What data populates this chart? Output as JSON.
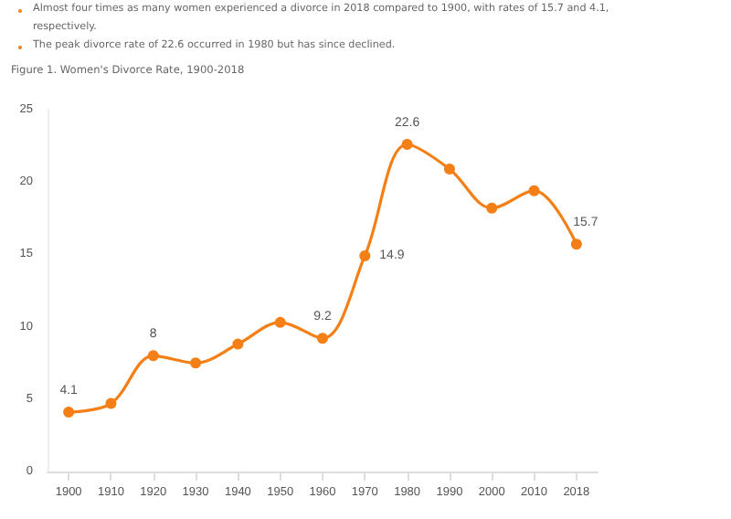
{
  "chart_data": {
    "type": "line",
    "title": "Figure 1. Women's Divorce Rate, 1900-2018",
    "annotations": [
      "Almost four times as many women experienced a divorce in 2018 compared to 1900, with rates of 15.7 and 4.1, respectively.",
      "The peak divorce rate of 22.6 occurred in 1980 but has since declined."
    ],
    "categories": [
      "1900",
      "1910",
      "1920",
      "1930",
      "1940",
      "1950",
      "1960",
      "1970",
      "1980",
      "1990",
      "2000",
      "2010",
      "2018"
    ],
    "series": [
      {
        "color": "#f57f17",
        "values": [
          4.1,
          4.7,
          8.0,
          7.5,
          8.8,
          10.3,
          9.2,
          14.9,
          22.6,
          20.9,
          18.2,
          19.4,
          15.7
        ],
        "value_labels": [
          "4.1",
          null,
          "8",
          null,
          null,
          null,
          "9.2",
          "14.9",
          "22.6",
          null,
          null,
          null,
          "15.7"
        ]
      }
    ],
    "ylim": [
      0,
      25
    ],
    "yticks": [
      0,
      5,
      10,
      15,
      20,
      25
    ],
    "grid": false,
    "marker": "circle",
    "line_style": "solid"
  }
}
